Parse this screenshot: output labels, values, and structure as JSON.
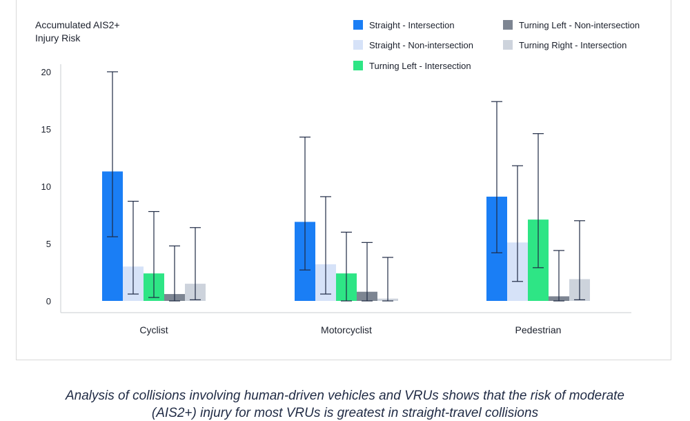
{
  "chart_data": {
    "type": "bar",
    "ylabel": [
      "Accumulated AIS2+",
      "Injury Risk"
    ],
    "ylim": [
      0,
      20
    ],
    "yticks": [
      0,
      5,
      10,
      15,
      20
    ],
    "categories": [
      "Cyclist",
      "Motorcyclist",
      "Pedestrian"
    ],
    "grid": false,
    "legend_position": "top-right",
    "series": [
      {
        "name": "Straight - Intersection",
        "color": "#1a7ef5",
        "values": [
          11.3,
          6.9,
          9.1
        ],
        "err_low": [
          5.6,
          2.7,
          4.2
        ],
        "err_high": [
          20.0,
          14.3,
          17.4
        ]
      },
      {
        "name": "Straight - Non-intersection",
        "color": "#d6e2f8",
        "values": [
          3.0,
          3.2,
          5.1
        ],
        "err_low": [
          0.6,
          0.6,
          1.7
        ],
        "err_high": [
          8.7,
          9.1,
          11.8
        ]
      },
      {
        "name": "Turning Left - Intersection",
        "color": "#2ee585",
        "values": [
          2.4,
          2.4,
          7.1
        ],
        "err_low": [
          0.3,
          0.0,
          2.9
        ],
        "err_high": [
          7.8,
          6.0,
          14.6
        ]
      },
      {
        "name": "Turning Left - Non-intersection",
        "color": "#7d8592",
        "values": [
          0.6,
          0.8,
          0.4
        ],
        "err_low": [
          0.0,
          0.0,
          0.0
        ],
        "err_high": [
          4.8,
          5.1,
          4.4
        ]
      },
      {
        "name": "Turning Right - Intersection",
        "color": "#cdd3dc",
        "values": [
          1.5,
          0.2,
          1.9
        ],
        "err_low": [
          0.1,
          0.0,
          0.1
        ],
        "err_high": [
          6.4,
          3.8,
          7.0
        ]
      }
    ]
  },
  "caption": {
    "line1": "Analysis of collisions involving human-driven vehicles and VRUs shows that the risk of moderate",
    "line2": "(AIS2+) injury for most VRUs is greatest in straight-travel collisions"
  }
}
